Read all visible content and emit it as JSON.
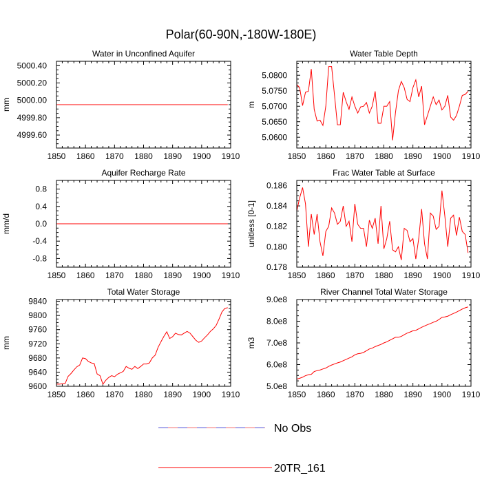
{
  "figure": {
    "title": "Polar(60-90N,-180W-180E)"
  },
  "legend": {
    "items": [
      {
        "label": "No Obs",
        "style": "dashed",
        "color": "#5a5ad8",
        "color2": "#e60000"
      },
      {
        "label": "20TR_161",
        "style": "solid",
        "color": "#ff0000"
      }
    ]
  },
  "chart_data": [
    {
      "type": "line",
      "title": "Water in Unconfined Aquifer",
      "ylabel": "mm",
      "xlabel": "",
      "xlim": [
        1850,
        1910
      ],
      "ylim": [
        4999.45,
        5000.45
      ],
      "xticks": [
        1850,
        1860,
        1870,
        1880,
        1890,
        1900,
        1910
      ],
      "yticks": [
        4999.6,
        4999.8,
        5000.0,
        5000.2,
        5000.4
      ],
      "yticklabels": [
        "4999.60",
        "4999.80",
        "5000.00",
        "5000.20",
        "5000.40"
      ],
      "series": [
        {
          "name": "20TR_161",
          "color": "#ff0000",
          "x": [
            1850,
            1909
          ],
          "y": [
            4999.95,
            4999.95
          ]
        }
      ]
    },
    {
      "type": "line",
      "title": "Water Table Depth",
      "ylabel": "m",
      "xlabel": "",
      "xlim": [
        1850,
        1910
      ],
      "ylim": [
        5.0565,
        5.0845
      ],
      "xticks": [
        1850,
        1860,
        1870,
        1880,
        1890,
        1900,
        1910
      ],
      "yticks": [
        5.06,
        5.065,
        5.07,
        5.075,
        5.08
      ],
      "yticklabels": [
        "5.0600",
        "5.0650",
        "5.0700",
        "5.0750",
        "5.0800"
      ],
      "series": [
        {
          "name": "20TR_161",
          "color": "#ff0000",
          "x": [
            1850,
            1851,
            1852,
            1853,
            1854,
            1855,
            1856,
            1857,
            1858,
            1859,
            1860,
            1861,
            1862,
            1863,
            1864,
            1865,
            1866,
            1867,
            1868,
            1869,
            1870,
            1871,
            1872,
            1873,
            1874,
            1875,
            1876,
            1877,
            1878,
            1879,
            1880,
            1881,
            1882,
            1883,
            1884,
            1885,
            1886,
            1887,
            1888,
            1889,
            1890,
            1891,
            1892,
            1893,
            1894,
            1895,
            1896,
            1897,
            1898,
            1899,
            1900,
            1901,
            1902,
            1903,
            1904,
            1905,
            1906,
            1907,
            1908,
            1909
          ],
          "y": [
            5.077,
            5.076,
            5.0702,
            5.0745,
            5.0748,
            5.082,
            5.069,
            5.0652,
            5.0655,
            5.0638,
            5.07,
            5.0828,
            5.0828,
            5.0735,
            5.064,
            5.064,
            5.0745,
            5.0715,
            5.069,
            5.073,
            5.07,
            5.0678,
            5.0698,
            5.07,
            5.0712,
            5.0678,
            5.07,
            5.0748,
            5.0645,
            5.0645,
            5.07,
            5.07,
            5.0715,
            5.059,
            5.068,
            5.075,
            5.078,
            5.076,
            5.0722,
            5.0715,
            5.076,
            5.0785,
            5.073,
            5.0765,
            5.064,
            5.067,
            5.07,
            5.073,
            5.0705,
            5.072,
            5.0688,
            5.07,
            5.0735,
            5.0665,
            5.0655,
            5.067,
            5.07,
            5.0735,
            5.0738,
            5.0748
          ]
        }
      ]
    },
    {
      "type": "line",
      "title": "Aquifer Recharge Rate",
      "ylabel": "mm/d",
      "xlabel": "",
      "xlim": [
        1850,
        1910
      ],
      "ylim": [
        -1.0,
        1.0
      ],
      "xticks": [
        1850,
        1860,
        1870,
        1880,
        1890,
        1900,
        1910
      ],
      "yticks": [
        -0.8,
        -0.4,
        0.0,
        0.4,
        0.8
      ],
      "yticklabels": [
        "-0.8",
        "-0.4",
        "0.0",
        "0.4",
        "0.8"
      ],
      "series": [
        {
          "name": "20TR_161",
          "color": "#ff0000",
          "x": [
            1850,
            1909
          ],
          "y": [
            0.0,
            0.0
          ]
        }
      ]
    },
    {
      "type": "line",
      "title": "Frac Water Table at Surface",
      "ylabel": "unitless [0-1]",
      "xlabel": "",
      "xlim": [
        1850,
        1910
      ],
      "ylim": [
        0.178,
        0.1865
      ],
      "xticks": [
        1850,
        1860,
        1870,
        1880,
        1890,
        1900,
        1910
      ],
      "yticks": [
        0.178,
        0.18,
        0.182,
        0.184,
        0.186
      ],
      "yticklabels": [
        "0.178",
        "0.180",
        "0.182",
        "0.184",
        "0.186"
      ],
      "series": [
        {
          "name": "20TR_161",
          "color": "#ff0000",
          "x": [
            1850,
            1851,
            1852,
            1853,
            1854,
            1855,
            1856,
            1857,
            1858,
            1859,
            1860,
            1861,
            1862,
            1863,
            1864,
            1865,
            1866,
            1867,
            1868,
            1869,
            1870,
            1871,
            1872,
            1873,
            1874,
            1875,
            1876,
            1877,
            1878,
            1879,
            1880,
            1881,
            1882,
            1883,
            1884,
            1885,
            1886,
            1887,
            1888,
            1889,
            1890,
            1891,
            1892,
            1893,
            1894,
            1895,
            1896,
            1897,
            1898,
            1899,
            1900,
            1901,
            1902,
            1903,
            1904,
            1905,
            1906,
            1907,
            1908,
            1909
          ],
          "y": [
            0.1835,
            0.1848,
            0.1858,
            0.1842,
            0.18,
            0.1832,
            0.1812,
            0.1832,
            0.1805,
            0.1791,
            0.1815,
            0.182,
            0.1838,
            0.1833,
            0.1822,
            0.1825,
            0.184,
            0.182,
            0.1825,
            0.1805,
            0.1842,
            0.1822,
            0.1818,
            0.1818,
            0.18,
            0.1826,
            0.1818,
            0.1828,
            0.1803,
            0.184,
            0.1798,
            0.1808,
            0.1825,
            0.1797,
            0.1795,
            0.18,
            0.1787,
            0.1818,
            0.1816,
            0.1805,
            0.1808,
            0.1788,
            0.1808,
            0.1837,
            0.1803,
            0.1788,
            0.1833,
            0.183,
            0.1817,
            0.182,
            0.1855,
            0.183,
            0.18,
            0.1828,
            0.1831,
            0.1811,
            0.1829,
            0.1815,
            0.1812,
            0.1794
          ]
        }
      ]
    },
    {
      "type": "line",
      "title": "Total Water Storage",
      "ylabel": "mm",
      "xlabel": "",
      "xlim": [
        1850,
        1910
      ],
      "ylim": [
        9600,
        9845
      ],
      "xticks": [
        1850,
        1860,
        1870,
        1880,
        1890,
        1900,
        1910
      ],
      "yticks": [
        9600,
        9640,
        9680,
        9720,
        9760,
        9800,
        9840
      ],
      "yticklabels": [
        "9600",
        "9640",
        "9680",
        "9720",
        "9760",
        "9800",
        "9840"
      ],
      "series": [
        {
          "name": "20TR_161",
          "color": "#ff0000",
          "x": [
            1850,
            1851,
            1852,
            1853,
            1854,
            1855,
            1856,
            1857,
            1858,
            1859,
            1860,
            1861,
            1862,
            1863,
            1864,
            1865,
            1866,
            1867,
            1868,
            1869,
            1870,
            1871,
            1872,
            1873,
            1874,
            1875,
            1876,
            1877,
            1878,
            1879,
            1880,
            1881,
            1882,
            1883,
            1884,
            1885,
            1886,
            1887,
            1888,
            1889,
            1890,
            1891,
            1892,
            1893,
            1894,
            1895,
            1896,
            1897,
            1898,
            1899,
            1900,
            1901,
            1902,
            1903,
            1904,
            1905,
            1906,
            1907,
            1908,
            1909
          ],
          "y": [
            9606,
            9606,
            9607,
            9608,
            9628,
            9636,
            9646,
            9655,
            9660,
            9680,
            9678,
            9670,
            9666,
            9664,
            9635,
            9630,
            9606,
            9617,
            9625,
            9630,
            9627,
            9634,
            9638,
            9642,
            9656,
            9651,
            9648,
            9656,
            9650,
            9656,
            9663,
            9663,
            9666,
            9680,
            9688,
            9710,
            9726,
            9741,
            9754,
            9735,
            9740,
            9750,
            9746,
            9745,
            9750,
            9755,
            9750,
            9740,
            9730,
            9724,
            9728,
            9737,
            9745,
            9755,
            9762,
            9772,
            9790,
            9810,
            9820,
            9822
          ]
        }
      ]
    },
    {
      "type": "line",
      "title": "River Channel Total Water Storage",
      "ylabel": "m3",
      "xlabel": "",
      "xlim": [
        1850,
        1910
      ],
      "ylim": [
        500000000,
        900000000
      ],
      "xticks": [
        1850,
        1860,
        1870,
        1880,
        1890,
        1900,
        1910
      ],
      "yticks": [
        500000000,
        600000000,
        700000000,
        800000000,
        900000000
      ],
      "yticklabels": [
        "5.0e8",
        "6.0e8",
        "7.0e8",
        "8.0e8",
        "9.0e8"
      ],
      "series": [
        {
          "name": "20TR_161",
          "color": "#ff0000",
          "x": [
            1850,
            1851,
            1852,
            1853,
            1854,
            1855,
            1856,
            1857,
            1858,
            1859,
            1860,
            1861,
            1862,
            1863,
            1864,
            1865,
            1866,
            1867,
            1868,
            1869,
            1870,
            1871,
            1872,
            1873,
            1874,
            1875,
            1876,
            1877,
            1878,
            1879,
            1880,
            1881,
            1882,
            1883,
            1884,
            1885,
            1886,
            1887,
            1888,
            1889,
            1890,
            1891,
            1892,
            1893,
            1894,
            1895,
            1896,
            1897,
            1898,
            1899,
            1900,
            1901,
            1902,
            1903,
            1904,
            1905,
            1906,
            1907,
            1908,
            1909
          ],
          "y": [
            533000000,
            537000000,
            542000000,
            549000000,
            553000000,
            555000000,
            568000000,
            572000000,
            575000000,
            580000000,
            584000000,
            592000000,
            598000000,
            603000000,
            608000000,
            612000000,
            618000000,
            624000000,
            630000000,
            636000000,
            645000000,
            650000000,
            652000000,
            656000000,
            664000000,
            672000000,
            676000000,
            683000000,
            688000000,
            693000000,
            700000000,
            705000000,
            712000000,
            719000000,
            726000000,
            726000000,
            730000000,
            738000000,
            745000000,
            750000000,
            756000000,
            758000000,
            765000000,
            772000000,
            778000000,
            784000000,
            789000000,
            795000000,
            800000000,
            808000000,
            818000000,
            820000000,
            823000000,
            830000000,
            836000000,
            842000000,
            849000000,
            856000000,
            862000000,
            866000000
          ]
        }
      ]
    }
  ]
}
